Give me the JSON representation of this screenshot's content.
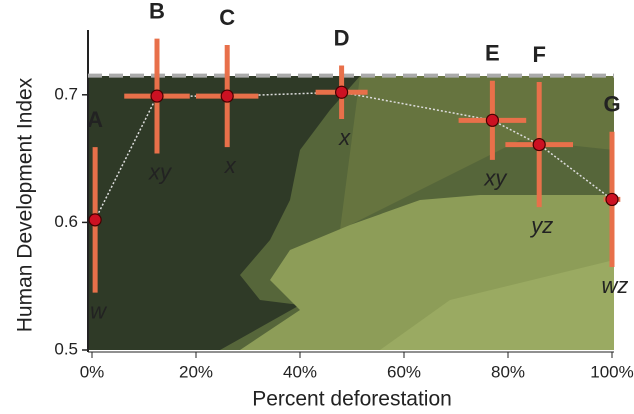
{
  "chart_data": {
    "type": "scatter",
    "xlabel": "Percent deforestation",
    "ylabel": "Human Development Index",
    "xlim": [
      0,
      100
    ],
    "ylim": [
      0.5,
      0.75
    ],
    "xticks": [
      {
        "value": 0,
        "label": "0%"
      },
      {
        "value": 20,
        "label": "20%"
      },
      {
        "value": 40,
        "label": "40%"
      },
      {
        "value": 60,
        "label": "60%"
      },
      {
        "value": 80,
        "label": "80%"
      },
      {
        "value": 100,
        "label": "100%"
      }
    ],
    "yticks": [
      0.5,
      0.6,
      0.7
    ],
    "reference_line": 0.715,
    "series": [
      {
        "color": "#cc1122",
        "error_color": "#e8704a",
        "labels": [
          "A",
          "B",
          "C",
          "D",
          "E",
          "F",
          "G"
        ],
        "groups": [
          "w",
          "xy",
          "x",
          "x",
          "xy",
          "yz",
          "wz"
        ],
        "x": [
          0.6,
          12.5,
          26,
          48,
          77,
          86,
          100
        ],
        "x_err": [
          0,
          6.3,
          6,
          5,
          6.5,
          6.5,
          1.6
        ],
        "values": [
          0.602,
          0.699,
          0.699,
          0.702,
          0.68,
          0.661,
          0.618
        ],
        "y_err": [
          0.057,
          0.045,
          0.04,
          0.021,
          0.031,
          0.049,
          0.053
        ]
      }
    ]
  }
}
